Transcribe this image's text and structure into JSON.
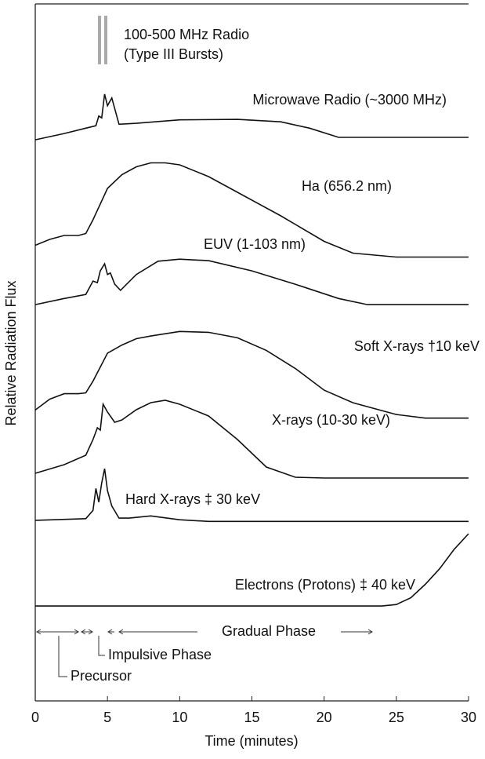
{
  "chart_data": {
    "type": "line",
    "xlabel": "Time (minutes)",
    "ylabel": "Relative Radiation Flux",
    "xlim": [
      0,
      30
    ],
    "xticks": [
      0,
      5,
      10,
      15,
      20,
      25,
      30
    ],
    "annotations": [
      "100-500  MHz Radio",
      "(Type III Bursts)",
      "Gradual Phase",
      "Impulsive Phase",
      "Precursor"
    ],
    "series": [
      {
        "name": "Microwave Radio (~3000 MHz)",
        "color": "#111",
        "x": [
          0,
          2,
          3.5,
          4.2,
          4.4,
          4.6,
          4.8,
          5.0,
          5.3,
          5.8,
          7,
          10,
          14,
          17,
          19,
          21,
          30
        ],
        "values": [
          0.03,
          0.16,
          0.27,
          0.32,
          0.52,
          0.48,
          0.97,
          0.73,
          0.89,
          0.35,
          0.37,
          0.44,
          0.45,
          0.4,
          0.27,
          0.08,
          0.08
        ]
      },
      {
        "name": "Ha (656.2 nm)",
        "color": "#111",
        "x": [
          0,
          1,
          2,
          3,
          3.5,
          4,
          5,
          6,
          7,
          8,
          9,
          10,
          12,
          14,
          17,
          20,
          22,
          25,
          30
        ],
        "values": [
          0.14,
          0.2,
          0.24,
          0.24,
          0.26,
          0.4,
          0.72,
          0.86,
          0.94,
          0.98,
          0.98,
          0.96,
          0.84,
          0.68,
          0.44,
          0.18,
          0.06,
          0.02,
          0.02
        ]
      },
      {
        "name": "EUV (1-103 nm)",
        "color": "#111",
        "x": [
          0,
          2,
          3.5,
          4,
          4.3,
          4.5,
          4.8,
          5,
          5.2,
          5.5,
          5.9,
          7,
          8.5,
          10,
          12,
          15,
          18,
          21,
          23,
          25,
          30
        ],
        "values": [
          0.03,
          0.15,
          0.23,
          0.49,
          0.46,
          0.69,
          0.83,
          0.62,
          0.65,
          0.43,
          0.31,
          0.62,
          0.88,
          0.92,
          0.89,
          0.69,
          0.43,
          0.15,
          0.03,
          0.03,
          0.03
        ]
      },
      {
        "name": "Soft X-rays †10 keV",
        "color": "#111",
        "x": [
          0,
          1,
          2,
          3,
          3.5,
          4,
          5,
          6,
          7,
          8,
          10,
          12,
          14,
          16,
          18,
          20,
          22,
          25,
          27,
          30
        ],
        "values": [
          0.11,
          0.23,
          0.29,
          0.29,
          0.3,
          0.43,
          0.74,
          0.83,
          0.9,
          0.93,
          0.98,
          0.97,
          0.91,
          0.77,
          0.57,
          0.33,
          0.19,
          0.06,
          0.02,
          0.02
        ]
      },
      {
        "name": "X-rays (10-30 keV)",
        "color": "#111",
        "x": [
          0,
          2,
          3.5,
          4,
          4.3,
          4.5,
          4.7,
          5,
          5.5,
          6,
          7,
          8,
          9,
          10,
          12,
          14,
          16,
          18,
          20,
          30
        ],
        "values": [
          0.07,
          0.18,
          0.3,
          0.5,
          0.65,
          0.62,
          0.95,
          0.85,
          0.72,
          0.75,
          0.88,
          0.97,
          1.0,
          0.95,
          0.8,
          0.5,
          0.15,
          0.02,
          0.01,
          0.01
        ]
      },
      {
        "name": "Hard X-rays ‡ 30 keV",
        "color": "#111",
        "x": [
          0,
          3.5,
          4,
          4.2,
          4.4,
          4.6,
          4.8,
          5,
          5.3,
          5.8,
          6.5,
          8,
          10,
          12,
          30
        ],
        "values": [
          0.03,
          0.06,
          0.21,
          0.61,
          0.36,
          0.71,
          0.97,
          0.57,
          0.29,
          0.07,
          0.07,
          0.11,
          0.04,
          0.01,
          0.01
        ]
      },
      {
        "name": "Electrons (Protons) ‡ 40 keV",
        "color": "#111",
        "x": [
          0,
          20,
          24,
          25,
          26,
          27,
          28,
          29,
          30
        ],
        "values": [
          0.02,
          0.02,
          0.02,
          0.04,
          0.13,
          0.31,
          0.52,
          0.78,
          0.99
        ]
      }
    ]
  }
}
